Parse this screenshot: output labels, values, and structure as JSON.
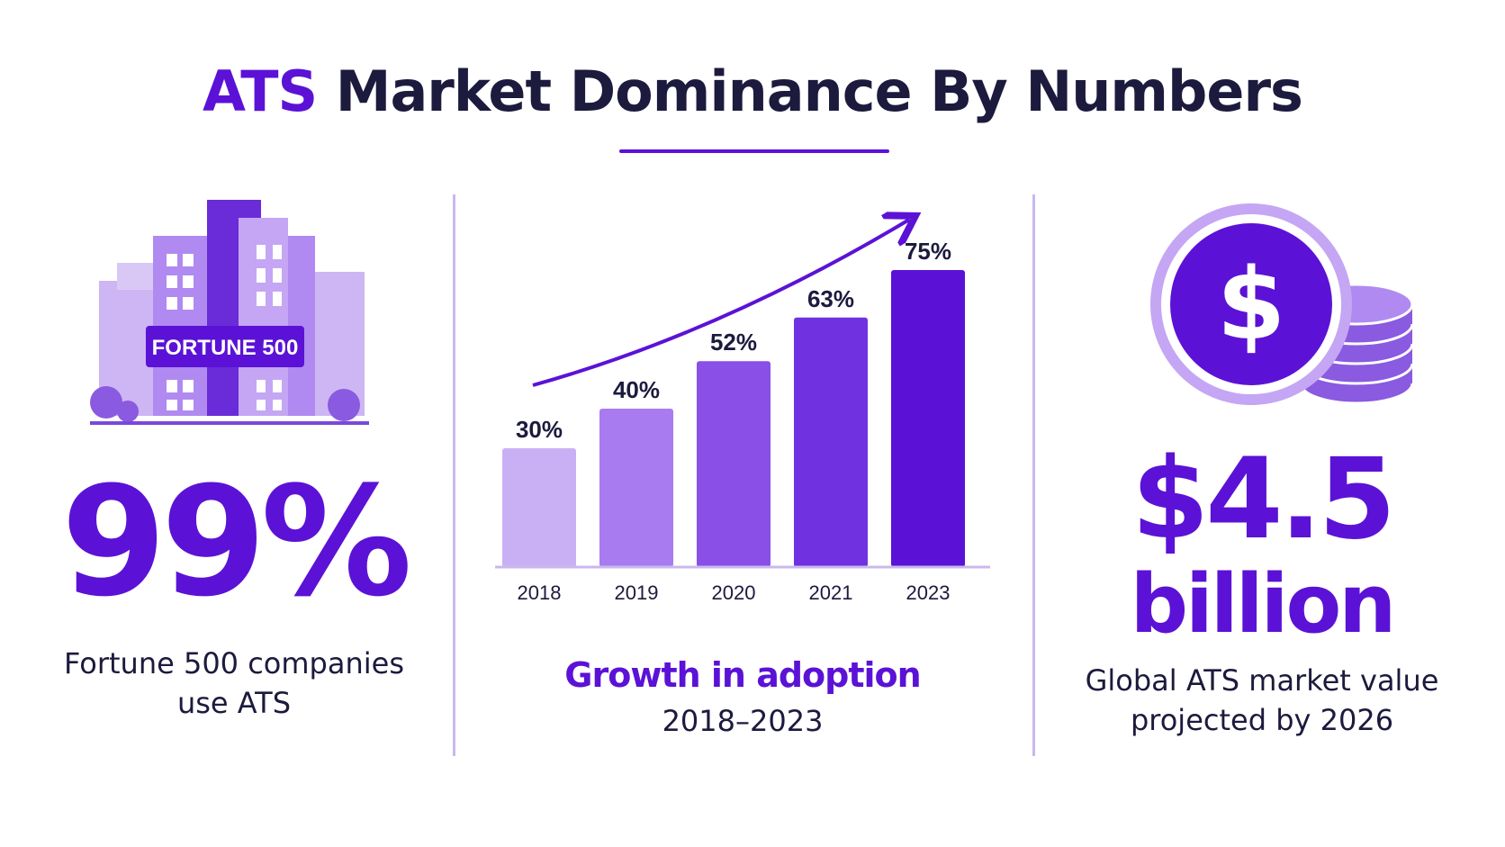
{
  "title": {
    "accent": "ATS",
    "rest": " Market Dominance By Numbers"
  },
  "left_panel": {
    "badge": "FORTUNE 500",
    "stat": "99%",
    "description": [
      "Fortune 500 companies",
      "use ATS"
    ],
    "icon": "office-building-icon"
  },
  "chart_data": {
    "type": "bar",
    "categories": [
      "2018",
      "2019",
      "2020",
      "2021",
      "2023"
    ],
    "values": [
      30,
      40,
      52,
      63,
      75
    ],
    "data_labels": [
      "30%",
      "40%",
      "52%",
      "63%",
      "75%"
    ],
    "title": "Growth in adoption",
    "subtitle": "2018–2023",
    "ylim": [
      0,
      75
    ],
    "grid": false,
    "trend_arrow": true
  },
  "right_panel": {
    "stat_line1": "$4.5",
    "stat_line2": "billion",
    "description": [
      "Global ATS market value",
      "projected by 2026"
    ],
    "icon": "dollar-coin-stack-icon"
  },
  "colors": {
    "accent": "#5b12d6",
    "text": "#1c1a3d",
    "bar_shades": [
      "#c9b0f5",
      "#a87bf0",
      "#8a4fe6",
      "#7032e0",
      "#5b12d6"
    ],
    "light": "#c9b8ee"
  }
}
